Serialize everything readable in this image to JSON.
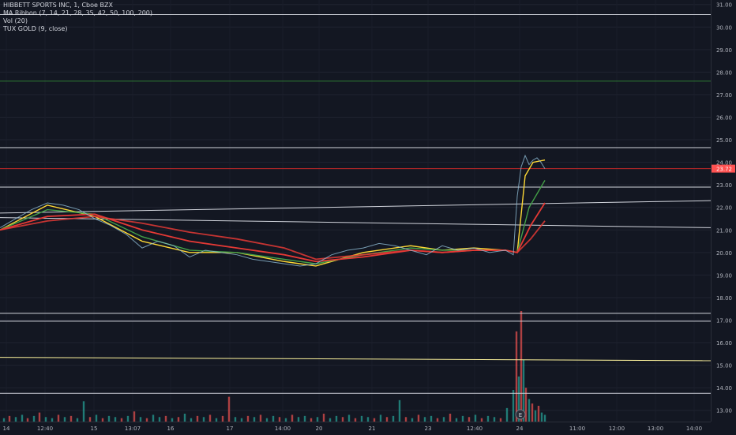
{
  "legend": {
    "title": "HIBBETT SPORTS INC, 1, Cboe BZX",
    "ma_ribbon": "MA Ribbon (7, 14, 21, 28, 35, 42, 50, 100, 200)",
    "vol": "Vol (20)",
    "tux": "TUX GOLD (9, close)"
  },
  "colors": {
    "background": "#131722",
    "price_line": "#ff5252",
    "ribbon_fast": "#fdd835",
    "ribbon_mid": "#43a047",
    "ribbon_slow": "#e53935",
    "support_line": "#d1d4dc",
    "target_line": "#2e7d32",
    "gold_line": "#fff59d",
    "volume_up": "#26a69a",
    "volume_down": "#ef5350",
    "axis_text": "#b2b5be"
  },
  "chart_data": {
    "type": "line",
    "ylim": [
      12.5,
      31.2
    ],
    "y_ticks": [
      "31.00",
      "30.00",
      "29.00",
      "28.00",
      "27.00",
      "26.00",
      "25.00",
      "24.00",
      "23.00",
      "22.00",
      "21.00",
      "20.00",
      "19.00",
      "18.00",
      "17.00",
      "16.00",
      "15.00",
      "14.00",
      "13.00"
    ],
    "x_ticks": [
      "14",
      "12:40",
      "15",
      "13:07",
      "16",
      "17",
      "14:00",
      "20",
      "21",
      "23",
      "12:40",
      "24",
      "11:00",
      "12:00",
      "13:00",
      "14:00"
    ],
    "last_price": "23.72",
    "price": {
      "x": [
        0,
        20,
        40,
        60,
        80,
        100,
        120,
        140,
        160,
        180,
        200,
        220,
        240,
        260,
        280,
        300,
        320,
        340,
        360,
        380,
        400,
        420,
        440,
        460,
        480,
        500,
        520,
        540,
        560,
        580,
        600,
        620,
        640,
        650,
        655,
        660,
        665,
        670,
        675,
        680,
        685,
        690
      ],
      "y": [
        21.1,
        21.5,
        21.9,
        22.2,
        22.1,
        21.9,
        21.5,
        21.2,
        20.8,
        20.2,
        20.5,
        20.3,
        19.8,
        20.1,
        20.0,
        19.9,
        19.7,
        19.6,
        19.5,
        19.4,
        19.5,
        19.9,
        20.1,
        20.2,
        20.4,
        20.3,
        20.1,
        19.9,
        20.3,
        20.1,
        20.2,
        20.0,
        20.1,
        19.9,
        22.5,
        23.8,
        24.3,
        23.9,
        24.1,
        24.2,
        24.0,
        23.72
      ]
    },
    "ribbon": [
      {
        "x": [
          0,
          60,
          120,
          180,
          240,
          300,
          360,
          400,
          460,
          520,
          560,
          600,
          640,
          655,
          665,
          675,
          690
        ],
        "y": [
          21.0,
          22.1,
          21.6,
          20.5,
          20.0,
          20.0,
          19.6,
          19.4,
          20.0,
          20.3,
          20.1,
          20.2,
          20.1,
          20.0,
          23.4,
          24.0,
          24.1
        ]
      },
      {
        "x": [
          0,
          60,
          120,
          180,
          240,
          300,
          360,
          400,
          460,
          520,
          560,
          600,
          640,
          655,
          670,
          690
        ],
        "y": [
          21.0,
          21.9,
          21.7,
          20.7,
          20.1,
          20.0,
          19.7,
          19.5,
          19.9,
          20.2,
          20.1,
          20.1,
          20.1,
          20.0,
          22.0,
          23.2
        ]
      },
      {
        "x": [
          0,
          60,
          120,
          180,
          240,
          300,
          360,
          400,
          460,
          520,
          560,
          600,
          640,
          655,
          672,
          690
        ],
        "y": [
          21.0,
          21.6,
          21.7,
          21.0,
          20.5,
          20.2,
          19.9,
          19.6,
          19.8,
          20.1,
          20.0,
          20.1,
          20.1,
          20.0,
          21.2,
          22.2
        ]
      },
      {
        "x": [
          0,
          60,
          120,
          180,
          240,
          300,
          360,
          400,
          460,
          520,
          560,
          600,
          640,
          655,
          672,
          690
        ],
        "y": [
          21.0,
          21.4,
          21.6,
          21.3,
          20.9,
          20.6,
          20.2,
          19.7,
          19.9,
          20.1,
          20.0,
          20.1,
          20.1,
          20.0,
          20.6,
          21.4
        ]
      }
    ],
    "horizontal_lines": [
      {
        "price": 30.55,
        "color": "#d1d4dc"
      },
      {
        "price": 27.6,
        "color": "#2e7d32"
      },
      {
        "price": 24.65,
        "color": "#d1d4dc"
      },
      {
        "price": 23.72,
        "color": "#c62828"
      },
      {
        "price": 22.9,
        "color": "#d1d4dc"
      },
      {
        "price": 17.3,
        "color": "#d1d4dc"
      },
      {
        "price": 16.95,
        "color": "#d1d4dc"
      },
      {
        "price": 13.75,
        "color": "#d1d4dc"
      }
    ],
    "sloped_lines": [
      {
        "x": [
          0,
          900
        ],
        "y": [
          21.75,
          22.3
        ],
        "color": "#d1d4dc"
      },
      {
        "x": [
          0,
          900
        ],
        "y": [
          21.55,
          21.1
        ],
        "color": "#d1d4dc"
      },
      {
        "x": [
          0,
          900
        ],
        "y": [
          15.35,
          15.2
        ],
        "color": "#fff59d"
      }
    ],
    "volume": {
      "x": [
        5,
        12,
        20,
        28,
        35,
        43,
        50,
        58,
        66,
        74,
        82,
        90,
        98,
        106,
        114,
        122,
        130,
        138,
        146,
        154,
        162,
        170,
        178,
        186,
        194,
        202,
        210,
        218,
        226,
        234,
        242,
        250,
        258,
        266,
        274,
        282,
        290,
        298,
        306,
        314,
        322,
        330,
        338,
        346,
        354,
        362,
        370,
        378,
        386,
        394,
        402,
        410,
        418,
        426,
        434,
        442,
        450,
        458,
        466,
        474,
        482,
        490,
        498,
        506,
        514,
        522,
        530,
        538,
        546,
        554,
        562,
        570,
        578,
        586,
        594,
        602,
        610,
        618,
        626,
        634,
        642,
        650,
        654,
        657,
        660,
        663,
        666,
        670,
        674,
        678,
        682,
        686,
        690
      ],
      "v": [
        3,
        5,
        4,
        6,
        3,
        5,
        8,
        4,
        3,
        6,
        4,
        5,
        3,
        18,
        4,
        6,
        3,
        5,
        4,
        3,
        5,
        9,
        4,
        3,
        6,
        4,
        5,
        3,
        4,
        7,
        3,
        5,
        4,
        6,
        3,
        5,
        22,
        4,
        3,
        5,
        4,
        6,
        3,
        5,
        4,
        3,
        6,
        4,
        5,
        3,
        4,
        7,
        3,
        5,
        4,
        6,
        3,
        5,
        4,
        3,
        6,
        4,
        5,
        19,
        4,
        3,
        6,
        4,
        5,
        3,
        4,
        7,
        3,
        5,
        4,
        6,
        3,
        5,
        4,
        3,
        12,
        28,
        80,
        40,
        98,
        55,
        30,
        20,
        16,
        10,
        14,
        8,
        6
      ],
      "up": [
        1,
        0,
        1,
        1,
        0,
        1,
        0,
        1,
        1,
        0,
        1,
        0,
        1,
        1,
        0,
        1,
        0,
        1,
        1,
        0,
        1,
        0,
        1,
        0,
        1,
        1,
        0,
        1,
        0,
        1,
        1,
        0,
        1,
        0,
        1,
        0,
        0,
        1,
        1,
        0,
        1,
        0,
        1,
        1,
        0,
        1,
        0,
        1,
        1,
        0,
        1,
        0,
        1,
        1,
        0,
        1,
        0,
        1,
        1,
        0,
        1,
        0,
        1,
        1,
        0,
        1,
        0,
        1,
        1,
        0,
        1,
        0,
        1,
        1,
        0,
        1,
        0,
        1,
        1,
        0,
        1,
        1,
        0,
        1,
        0,
        1,
        0,
        1,
        0,
        1,
        0,
        1,
        1
      ]
    },
    "earnings_marker": {
      "x": 659,
      "label": "E"
    }
  }
}
